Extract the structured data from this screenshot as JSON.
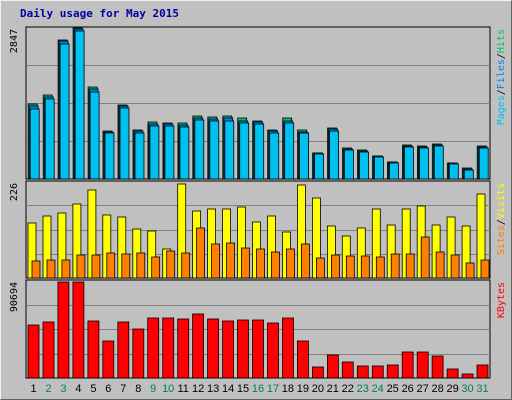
{
  "title": "Daily usage for May 2015",
  "colors": {
    "background": "#c0c0c0",
    "pages": "#00c0f0",
    "files": "#0080f0",
    "hits": "#00c060",
    "visits": "#ffff00",
    "sites": "#ff8000",
    "kbytes": "#ff0000",
    "weekday_label": "#000000",
    "weekend_label": "#00805c",
    "title": "#0000a0"
  },
  "chart_data": [
    {
      "type": "bar",
      "panel": "hits_files_pages",
      "ymax_label": "2847",
      "ylim": [
        0,
        2847
      ],
      "right_label_parts": [
        "Pages",
        "/",
        "Files",
        "/",
        "Hits"
      ],
      "categories": [
        "1",
        "2",
        "3",
        "4",
        "5",
        "6",
        "7",
        "8",
        "9",
        "10",
        "11",
        "12",
        "13",
        "14",
        "15",
        "16",
        "17",
        "18",
        "19",
        "20",
        "21",
        "22",
        "23",
        "24",
        "25",
        "26",
        "27",
        "28",
        "29",
        "30",
        "31"
      ],
      "series": [
        {
          "name": "Hits",
          "values": [
            1420,
            1600,
            2640,
            2860,
            1750,
            920,
            1400,
            930,
            1080,
            1060,
            1060,
            1190,
            1170,
            1190,
            1150,
            1110,
            930,
            1150,
            930,
            500,
            970,
            590,
            550,
            440,
            330,
            640,
            630,
            660,
            310,
            200,
            630
          ]
        },
        {
          "name": "Files",
          "values": [
            1380,
            1560,
            2610,
            2840,
            1700,
            900,
            1380,
            910,
            1050,
            1040,
            1030,
            1160,
            1130,
            1150,
            1110,
            1080,
            910,
            1110,
            900,
            490,
            950,
            570,
            530,
            430,
            320,
            620,
            610,
            640,
            300,
            190,
            610
          ]
        },
        {
          "name": "Pages",
          "values": [
            1330,
            1520,
            2560,
            2810,
            1660,
            870,
            1340,
            880,
            1010,
            1000,
            990,
            1120,
            1100,
            1110,
            1070,
            1040,
            880,
            1070,
            870,
            470,
            910,
            550,
            510,
            410,
            300,
            600,
            590,
            620,
            280,
            180,
            590
          ]
        }
      ]
    },
    {
      "type": "bar",
      "panel": "visits_sites",
      "ymax_label": "226",
      "ylim": [
        0,
        226
      ],
      "right_label_parts": [
        "Sites",
        "/",
        "Visits"
      ],
      "categories": [
        "1",
        "2",
        "3",
        "4",
        "5",
        "6",
        "7",
        "8",
        "9",
        "10",
        "11",
        "12",
        "13",
        "14",
        "15",
        "16",
        "17",
        "18",
        "19",
        "20",
        "21",
        "22",
        "23",
        "24",
        "25",
        "26",
        "27",
        "28",
        "29",
        "30",
        "31"
      ],
      "series": [
        {
          "name": "Visits",
          "values": [
            130,
            147,
            155,
            177,
            210,
            150,
            146,
            117,
            111,
            69,
            224,
            159,
            165,
            165,
            170,
            133,
            148,
            110,
            222,
            190,
            123,
            100,
            120,
            163,
            126,
            163,
            171,
            127,
            144,
            123,
            199
          ]
        },
        {
          "name": "Sites",
          "values": [
            40,
            44,
            44,
            54,
            55,
            60,
            58,
            59,
            51,
            64,
            60,
            119,
            82,
            84,
            71,
            70,
            63,
            69,
            81,
            47,
            54,
            52,
            53,
            50,
            57,
            57,
            97,
            62,
            54,
            35,
            42
          ]
        }
      ]
    },
    {
      "type": "bar",
      "panel": "kbytes",
      "ymax_label": "90694",
      "ylim": [
        0,
        90694
      ],
      "right_label_parts": [
        "KBytes"
      ],
      "categories": [
        "1",
        "2",
        "3",
        "4",
        "5",
        "6",
        "7",
        "8",
        "9",
        "10",
        "11",
        "12",
        "13",
        "14",
        "15",
        "16",
        "17",
        "18",
        "19",
        "20",
        "21",
        "22",
        "23",
        "24",
        "25",
        "26",
        "27",
        "28",
        "29",
        "30",
        "31"
      ],
      "series": [
        {
          "name": "KBytes",
          "values": [
            50000,
            53000,
            90694,
            90694,
            54000,
            35000,
            53000,
            46000,
            57000,
            57000,
            56000,
            60000,
            56000,
            54000,
            55000,
            55000,
            52000,
            57000,
            35000,
            10000,
            22000,
            15000,
            11000,
            11000,
            12000,
            25000,
            25000,
            21000,
            8500,
            3500,
            12000
          ]
        }
      ]
    }
  ]
}
